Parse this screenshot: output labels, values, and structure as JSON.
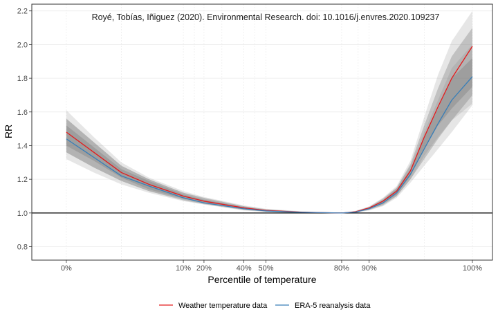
{
  "chart_data": {
    "type": "line",
    "annotation": "Royé, Tobías, Iñiguez (2020). Environmental Research. doi: 10.1016/j.envres.2020.109237",
    "xlabel": "Percentile of temperature",
    "ylabel": "RR",
    "temp_domain": [
      0,
      30.5
    ],
    "ylim": [
      0.72,
      2.24
    ],
    "yticks": [
      0.8,
      1.0,
      1.2,
      1.4,
      1.6,
      1.8,
      2.0,
      2.2
    ],
    "ytick_labels": [
      "0.8",
      "1.0",
      "1.2",
      "1.4",
      "1.6",
      "1.8",
      "2.0",
      "2.2"
    ],
    "xticks": [
      {
        "label": "0%",
        "pos": 1.0
      },
      {
        "label": "10%",
        "pos": 9.5
      },
      {
        "label": "20%",
        "pos": 11.0
      },
      {
        "label": "40%",
        "pos": 13.9
      },
      {
        "label": "50%",
        "pos": 15.5
      },
      {
        "label": "80%",
        "pos": 21.0
      },
      {
        "label": "90%",
        "pos": 23.0
      },
      {
        "label": "100%",
        "pos": 30.5
      }
    ],
    "minor_grid": [
      5.0,
      10.3,
      12.3,
      14.7,
      22.2,
      27.0
    ],
    "reference_line": 1.0,
    "grid": true,
    "legend_position": "bottom",
    "x": [
      1.0,
      3.0,
      5.0,
      7.0,
      9.5,
      11.0,
      13.9,
      15.5,
      18.0,
      21.0,
      22.0,
      23.0,
      24.0,
      25.0,
      26.0,
      27.0,
      28.0,
      29.0,
      30.5
    ],
    "series": [
      {
        "name": "Weather temperature data",
        "color": "#e41a1c",
        "values": [
          1.48,
          1.36,
          1.24,
          1.17,
          1.1,
          1.07,
          1.03,
          1.015,
          1.005,
          1.0,
          1.007,
          1.03,
          1.07,
          1.13,
          1.25,
          1.45,
          1.63,
          1.8,
          1.99
        ],
        "ci95": [
          [
            1.36,
            1.61
          ],
          [
            1.27,
            1.45
          ],
          [
            1.19,
            1.3
          ],
          [
            1.13,
            1.21
          ],
          [
            1.08,
            1.13
          ],
          [
            1.055,
            1.095
          ],
          [
            1.02,
            1.045
          ],
          [
            1.008,
            1.025
          ],
          [
            1.0,
            1.01
          ],
          [
            1.0,
            1.0
          ],
          [
            1.003,
            1.012
          ],
          [
            1.02,
            1.04
          ],
          [
            1.05,
            1.09
          ],
          [
            1.1,
            1.16
          ],
          [
            1.2,
            1.31
          ],
          [
            1.34,
            1.57
          ],
          [
            1.45,
            1.82
          ],
          [
            1.55,
            2.02
          ],
          [
            1.65,
            2.2
          ]
        ],
        "ci80": [
          [
            1.4,
            1.56
          ],
          [
            1.31,
            1.42
          ],
          [
            1.21,
            1.28
          ],
          [
            1.14,
            1.2
          ],
          [
            1.085,
            1.12
          ],
          [
            1.06,
            1.09
          ],
          [
            1.022,
            1.04
          ],
          [
            1.01,
            1.022
          ],
          [
            1.002,
            1.008
          ],
          [
            1.0,
            1.0
          ],
          [
            1.004,
            1.01
          ],
          [
            1.023,
            1.036
          ],
          [
            1.055,
            1.085
          ],
          [
            1.11,
            1.15
          ],
          [
            1.22,
            1.29
          ],
          [
            1.38,
            1.52
          ],
          [
            1.52,
            1.74
          ],
          [
            1.62,
            1.93
          ],
          [
            1.75,
            2.1
          ]
        ]
      },
      {
        "name": "ERA-5 reanalysis data",
        "color": "#377eb8",
        "values": [
          1.44,
          1.33,
          1.22,
          1.16,
          1.09,
          1.06,
          1.025,
          1.012,
          1.004,
          1.0,
          1.005,
          1.025,
          1.06,
          1.12,
          1.23,
          1.38,
          1.53,
          1.67,
          1.81
        ],
        "ci95": [
          [
            1.32,
            1.56
          ],
          [
            1.24,
            1.42
          ],
          [
            1.17,
            1.28
          ],
          [
            1.12,
            1.2
          ],
          [
            1.07,
            1.12
          ],
          [
            1.05,
            1.085
          ],
          [
            1.015,
            1.04
          ],
          [
            1.006,
            1.02
          ],
          [
            1.0,
            1.008
          ],
          [
            1.0,
            1.0
          ],
          [
            1.002,
            1.01
          ],
          [
            1.015,
            1.035
          ],
          [
            1.04,
            1.08
          ],
          [
            1.09,
            1.15
          ],
          [
            1.18,
            1.28
          ],
          [
            1.28,
            1.48
          ],
          [
            1.38,
            1.67
          ],
          [
            1.48,
            1.86
          ],
          [
            1.64,
            2.0
          ]
        ],
        "ci80": [
          [
            1.36,
            1.52
          ],
          [
            1.27,
            1.39
          ],
          [
            1.19,
            1.26
          ],
          [
            1.13,
            1.19
          ],
          [
            1.075,
            1.11
          ],
          [
            1.052,
            1.078
          ],
          [
            1.018,
            1.035
          ],
          [
            1.008,
            1.017
          ],
          [
            1.001,
            1.006
          ],
          [
            1.0,
            1.0
          ],
          [
            1.003,
            1.008
          ],
          [
            1.018,
            1.032
          ],
          [
            1.045,
            1.075
          ],
          [
            1.1,
            1.14
          ],
          [
            1.2,
            1.26
          ],
          [
            1.32,
            1.45
          ],
          [
            1.44,
            1.62
          ],
          [
            1.55,
            1.8
          ],
          [
            1.7,
            1.92
          ]
        ]
      }
    ]
  }
}
